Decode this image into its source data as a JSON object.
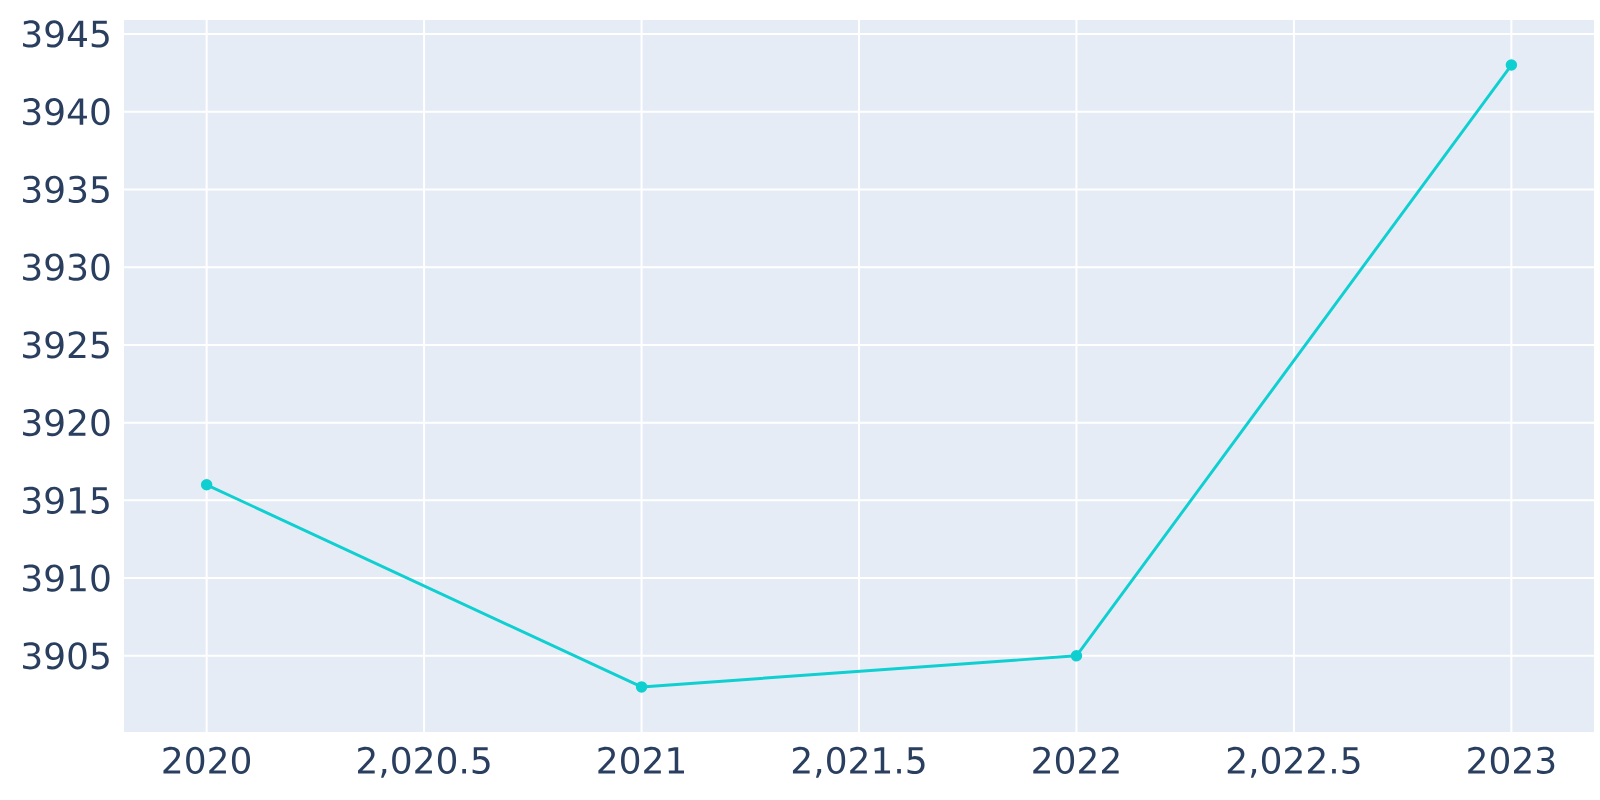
{
  "chart_data": {
    "type": "line",
    "x": [
      2020,
      2021,
      2022,
      2023
    ],
    "series": [
      {
        "color": "#0fcfd0",
        "values": [
          3916,
          3903,
          3905,
          3943
        ]
      }
    ],
    "xlim": [
      2019.81,
      2023.19
    ],
    "ylim": [
      3900.1,
      3945.9
    ],
    "xticks": [
      2020,
      {
        "value": 2020.5,
        "label": "2,020.5"
      },
      2021,
      {
        "value": 2021.5,
        "label": "2,021.5"
      },
      2022,
      {
        "value": 2022.5,
        "label": "2,022.5"
      },
      2023
    ],
    "yticks": [
      3905,
      3910,
      3915,
      3920,
      3925,
      3930,
      3935,
      3940,
      3945
    ],
    "grid": true,
    "marker": "circle",
    "line_style": "solid"
  }
}
